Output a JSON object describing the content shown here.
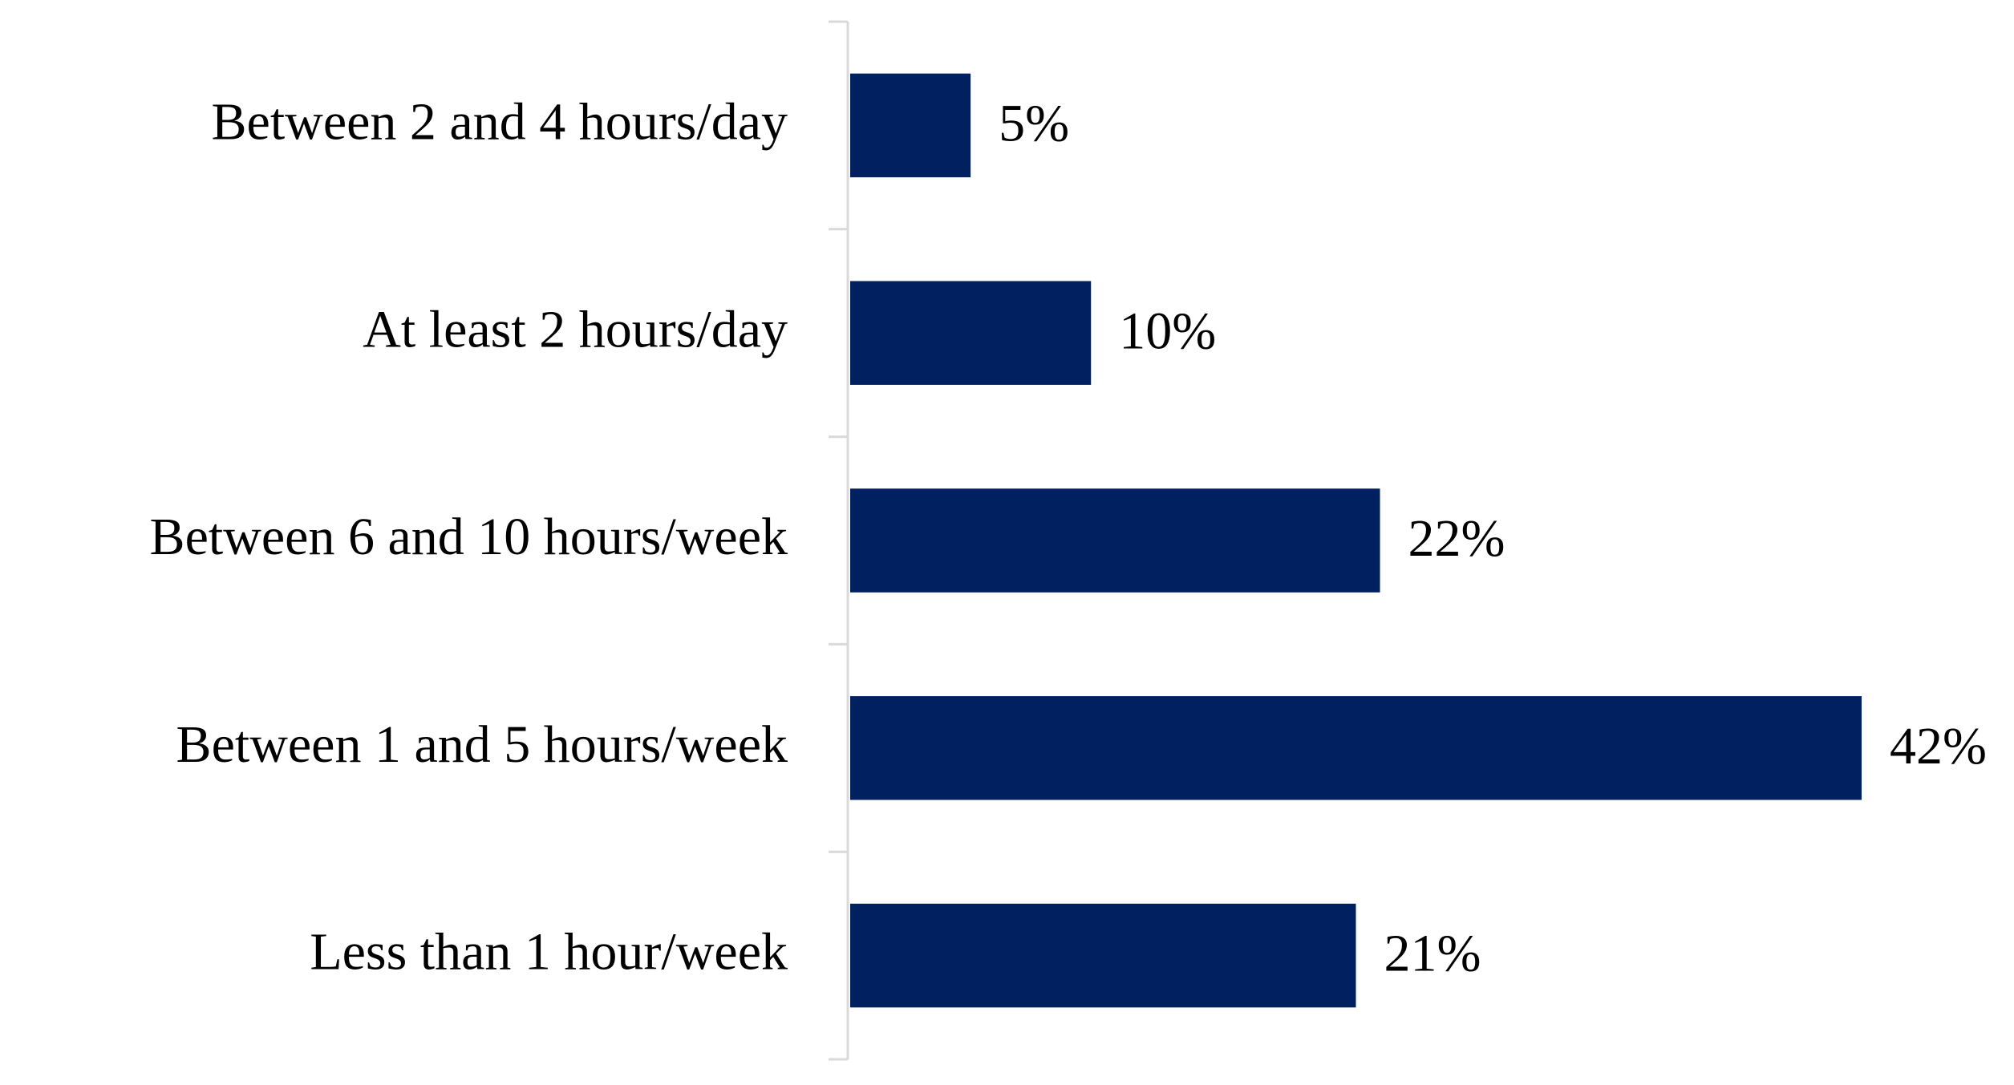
{
  "chart_data": {
    "type": "bar",
    "orientation": "horizontal",
    "categories": [
      "Between 2 and 4 hours/day",
      "At least 2 hours/day",
      "Between 6 and 10 hours/week",
      "Between 1 and 5 hours/week",
      "Less than 1 hour/week"
    ],
    "values": [
      5,
      10,
      22,
      42,
      21
    ],
    "value_labels": [
      "5%",
      "10%",
      "22%",
      "42%",
      "21%"
    ],
    "color": "#002060"
  }
}
